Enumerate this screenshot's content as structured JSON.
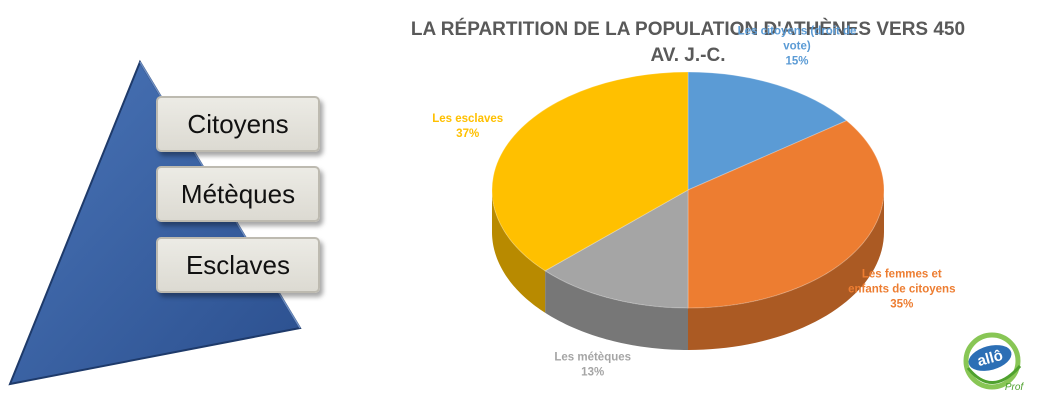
{
  "pyramid": {
    "tiers": [
      "Citoyens",
      "Métèques",
      "Esclaves"
    ],
    "color": "#2e5596"
  },
  "chart_data": {
    "type": "pie",
    "title": "LA RÉPARTITION DE LA POPULATION D'ATHÈNES VERS 450 AV. J.-C.",
    "title_lines": [
      "LA RÉPARTITION DE LA POPULATION D'ATHÈNES VERS 450",
      "AV. J.-C."
    ],
    "slices": [
      {
        "label": "Les citoyens (droit de vote)",
        "label_lines": [
          "Les citoyens (droit de",
          "vote)"
        ],
        "value": 15,
        "pct": "15%",
        "color": "#5b9bd5"
      },
      {
        "label": "Les femmes et enfants de citoyens",
        "label_lines": [
          "Les femmes et",
          "enfants de citoyens"
        ],
        "value": 35,
        "pct": "35%",
        "color": "#ed7d31"
      },
      {
        "label": "Les métèques",
        "label_lines": [
          "Les métèques"
        ],
        "value": 13,
        "pct": "13%",
        "color": "#a5a5a5"
      },
      {
        "label": "Les esclaves",
        "label_lines": [
          "Les esclaves"
        ],
        "value": 37,
        "pct": "37%",
        "color": "#ffc000"
      }
    ],
    "legend": "none",
    "style": "3d-pie"
  },
  "logo": {
    "text": "allô",
    "subtext": "Prof"
  }
}
